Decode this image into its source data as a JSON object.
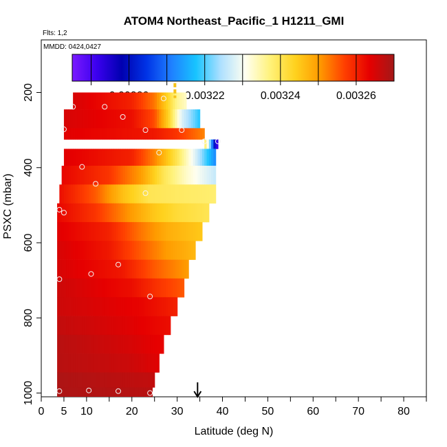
{
  "chart_data": {
    "type": "heatmap",
    "title": "ATOM4 Northeast_Pacific_1 H1211_GMI",
    "flights_label": "Flts: 1,2",
    "dates_label": "MMDD: 0424,0427",
    "xlabel": "Latitude (deg N)",
    "ylabel": "PSXC (mbar)",
    "xlim": [
      0,
      85
    ],
    "ylim": [
      1010,
      60
    ],
    "x_ticks": [
      0,
      5,
      10,
      20,
      30,
      40,
      50,
      60,
      70,
      80
    ],
    "y_ticks": [
      200,
      400,
      600,
      800,
      1000
    ],
    "colorbar": {
      "range": [
        0.003185,
        0.00327
      ],
      "ticks": [
        "0.00320",
        "0.00322",
        "0.00324",
        "0.00326"
      ],
      "tick_values": [
        0.0032,
        0.00322,
        0.00324,
        0.00326
      ],
      "colors": [
        "#7a1aff",
        "#3a00ee",
        "#0000b0",
        "#0033e6",
        "#1f7fff",
        "#18c4ff",
        "#aee0ff",
        "#fffff0",
        "#fff27a",
        "#ffd21e",
        "#ff9a00",
        "#ff3f00",
        "#e60000",
        "#a31818"
      ]
    },
    "rows": [
      {
        "p": 220,
        "x0": 7,
        "x1": 32,
        "stops": [
          [
            7,
            0.003265
          ],
          [
            20,
            0.00326
          ],
          [
            25,
            0.003253
          ],
          [
            28,
            0.003243
          ],
          [
            30,
            0.003236
          ],
          [
            32,
            0.003233
          ]
        ]
      },
      {
        "p": 270,
        "x0": 5,
        "x1": 35,
        "stops": [
          [
            5,
            0.003265
          ],
          [
            20,
            0.003262
          ],
          [
            25,
            0.003256
          ],
          [
            28,
            0.003244
          ],
          [
            31,
            0.003228
          ],
          [
            35,
            0.003218
          ]
        ]
      },
      {
        "p": 320,
        "x0": 5,
        "x1": 36,
        "stops": [
          [
            5,
            0.003264
          ],
          [
            25,
            0.003261
          ],
          [
            30,
            0.003258
          ],
          [
            33,
            0.003255
          ],
          [
            36,
            0.003252
          ]
        ]
      },
      {
        "p": 330,
        "x0": 36,
        "x1": 39,
        "stops": [
          [
            36,
            0.00324
          ],
          [
            37,
            0.003228
          ],
          [
            38,
            0.003205
          ],
          [
            39,
            0.003188
          ]
        ]
      },
      {
        "p": 370,
        "x0": 5,
        "x1": 38.5,
        "stops": [
          [
            5,
            0.003264
          ],
          [
            20,
            0.00326
          ],
          [
            25,
            0.003252
          ],
          [
            30,
            0.00324
          ],
          [
            34,
            0.003228
          ],
          [
            38.5,
            0.003212
          ]
        ]
      },
      {
        "p": 420,
        "x0": 4.5,
        "x1": 38.5,
        "stops": [
          [
            4.5,
            0.003263
          ],
          [
            15,
            0.003258
          ],
          [
            22,
            0.00325
          ],
          [
            27,
            0.00324
          ],
          [
            32,
            0.003233
          ],
          [
            38.5,
            0.003226
          ]
        ]
      },
      {
        "p": 470,
        "x0": 4,
        "x1": 38.5,
        "stops": [
          [
            4,
            0.003262
          ],
          [
            12,
            0.003255
          ],
          [
            18,
            0.003246
          ],
          [
            24,
            0.00324
          ],
          [
            30,
            0.003239
          ],
          [
            38.5,
            0.003238
          ]
        ]
      },
      {
        "p": 520,
        "x0": 3.5,
        "x1": 37,
        "stops": [
          [
            3.5,
            0.003263
          ],
          [
            12,
            0.003258
          ],
          [
            20,
            0.00325
          ],
          [
            25,
            0.003245
          ],
          [
            30,
            0.003242
          ],
          [
            37,
            0.00324
          ]
        ]
      },
      {
        "p": 570,
        "x0": 3.5,
        "x1": 35.5,
        "stops": [
          [
            3.5,
            0.003264
          ],
          [
            15,
            0.00326
          ],
          [
            22,
            0.003253
          ],
          [
            28,
            0.003248
          ],
          [
            35.5,
            0.003245
          ]
        ]
      },
      {
        "p": 620,
        "x0": 3.5,
        "x1": 34,
        "stops": [
          [
            3.5,
            0.003265
          ],
          [
            15,
            0.003261
          ],
          [
            22,
            0.003255
          ],
          [
            28,
            0.00325
          ],
          [
            34,
            0.003247
          ]
        ]
      },
      {
        "p": 670,
        "x0": 3.5,
        "x1": 32.5,
        "stops": [
          [
            3.5,
            0.003265
          ],
          [
            18,
            0.003261
          ],
          [
            25,
            0.003255
          ],
          [
            32.5,
            0.00325
          ]
        ]
      },
      {
        "p": 720,
        "x0": 3.5,
        "x1": 31.5,
        "stops": [
          [
            3.5,
            0.003266
          ],
          [
            20,
            0.003262
          ],
          [
            26,
            0.003258
          ],
          [
            31.5,
            0.003255
          ]
        ]
      },
      {
        "p": 770,
        "x0": 3.5,
        "x1": 30,
        "stops": [
          [
            3.5,
            0.003266
          ],
          [
            22,
            0.003263
          ],
          [
            30,
            0.00326
          ]
        ]
      },
      {
        "p": 820,
        "x0": 3.5,
        "x1": 28.5,
        "stops": [
          [
            3.5,
            0.003267
          ],
          [
            20,
            0.003264
          ],
          [
            28.5,
            0.003262
          ]
        ]
      },
      {
        "p": 870,
        "x0": 3.5,
        "x1": 27,
        "stops": [
          [
            3.5,
            0.003268
          ],
          [
            20,
            0.003265
          ],
          [
            27,
            0.003263
          ]
        ]
      },
      {
        "p": 920,
        "x0": 3.5,
        "x1": 26,
        "stops": [
          [
            3.5,
            0.003268
          ],
          [
            20,
            0.003266
          ],
          [
            26,
            0.003264
          ]
        ]
      },
      {
        "p": 970,
        "x0": 3.5,
        "x1": 25,
        "stops": [
          [
            3.5,
            0.003269
          ],
          [
            25,
            0.003267
          ]
        ]
      },
      {
        "p": 1000,
        "x0": 3.5,
        "x1": 24.5,
        "stops": [
          [
            3.5,
            0.003269
          ],
          [
            24.5,
            0.003268
          ]
        ]
      }
    ],
    "points": [
      [
        7,
        238
      ],
      [
        14,
        238
      ],
      [
        27,
        216
      ],
      [
        18,
        265
      ],
      [
        5,
        298
      ],
      [
        23,
        300
      ],
      [
        31,
        300
      ],
      [
        36,
        330
      ],
      [
        39,
        330
      ],
      [
        26,
        360
      ],
      [
        9,
        398
      ],
      [
        12,
        443
      ],
      [
        23,
        468
      ],
      [
        4,
        512
      ],
      [
        5,
        520
      ],
      [
        17,
        658
      ],
      [
        11,
        683
      ],
      [
        4,
        697
      ],
      [
        24,
        743
      ],
      [
        4,
        995
      ],
      [
        10.5,
        993
      ],
      [
        17,
        995
      ],
      [
        24,
        1000
      ]
    ],
    "marker": {
      "x": 29.5,
      "p_top": 175,
      "p_bottom": 215,
      "color": "#f6c21a"
    },
    "arrow_x": 34.5
  }
}
